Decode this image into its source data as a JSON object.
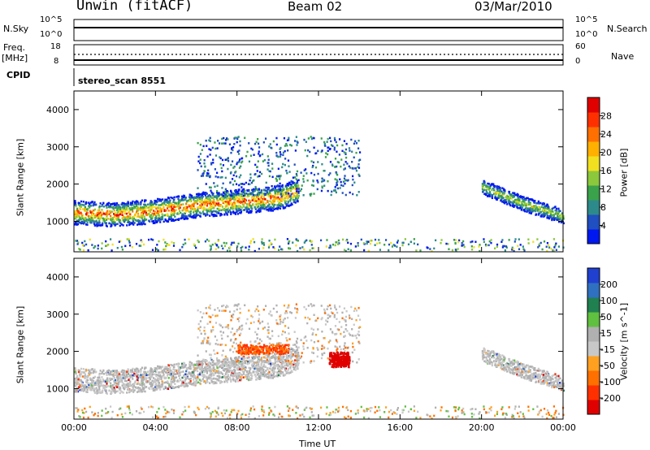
{
  "header": {
    "radar": "Unwin (fitACF)",
    "beam": "Beam 02",
    "date": "03/Mar/2010"
  },
  "top_panels": {
    "nsky_label": "N.Sky",
    "nsky_ticks": [
      "10^5",
      "10^0"
    ],
    "nsearch_label": "N.Search",
    "nsearch_ticks": [
      "10^5",
      "10^0"
    ],
    "freq_label": "Freq.",
    "freq_unit": "[MHz]",
    "freq_ticks": [
      "18",
      "8"
    ],
    "nave_label": "Nave",
    "nave_ticks": [
      "60",
      "0"
    ],
    "cpid_label": "CPID",
    "cpid_value": "stereo_scan 8551"
  },
  "colors": {
    "power": [
      "#0018f0",
      "#1f4fc0",
      "#2d8a8a",
      "#3aa24a",
      "#8cc83c",
      "#f0e020",
      "#ffb000",
      "#ff7000",
      "#ff3000",
      "#e00000"
    ],
    "velocity": [
      "#2040d0",
      "#3070c0",
      "#208050",
      "#60c040",
      "#b0b0b0",
      "#c8c8c8",
      "#ffa020",
      "#ff7000",
      "#ff3000",
      "#e00000"
    ]
  },
  "chart_data": [
    {
      "type": "heatmap",
      "name": "power",
      "ylabel": "Slant Range [km]",
      "ylim": [
        180,
        4500
      ],
      "yticks": [
        "1000",
        "2000",
        "3000",
        "4000"
      ],
      "colorbar_label": "Power [dB]",
      "colorbar_ticks": [
        "4",
        "8",
        "12",
        "16",
        "20",
        "24",
        "28"
      ],
      "bands": [
        {
          "x": [
            0.0,
            2.0,
            4.0,
            6.0,
            8.0,
            10.0,
            11.0
          ],
          "range_center": [
            1250,
            1200,
            1300,
            1450,
            1550,
            1650,
            1850
          ],
          "range_width": 500,
          "peak_db": 22
        },
        {
          "x": [
            20.0,
            22.0,
            24.0
          ],
          "range_center": [
            1950,
            1500,
            1150
          ],
          "range_width": 300,
          "peak_db": 12
        }
      ]
    },
    {
      "type": "heatmap",
      "name": "velocity",
      "ylabel": "Slant Range [km]",
      "ylim": [
        180,
        4500
      ],
      "yticks": [
        "1000",
        "2000",
        "3000",
        "4000"
      ],
      "colorbar_label": "Velocity [m s^-1]",
      "colorbar_ticks": [
        "200",
        "100",
        "50",
        "15",
        "-15",
        "-50",
        "-100",
        "-200"
      ],
      "xlabel": "Time UT",
      "xticks": [
        "00:00",
        "04:00",
        "08:00",
        "12:00",
        "16:00",
        "20:00",
        "00:00"
      ],
      "features": [
        {
          "x": [
            8.0,
            10.5
          ],
          "range": [
            1950,
            2200
          ],
          "velocity": -120
        },
        {
          "x": [
            12.5,
            13.5
          ],
          "range": [
            1600,
            2000
          ],
          "velocity": -180
        }
      ]
    }
  ]
}
